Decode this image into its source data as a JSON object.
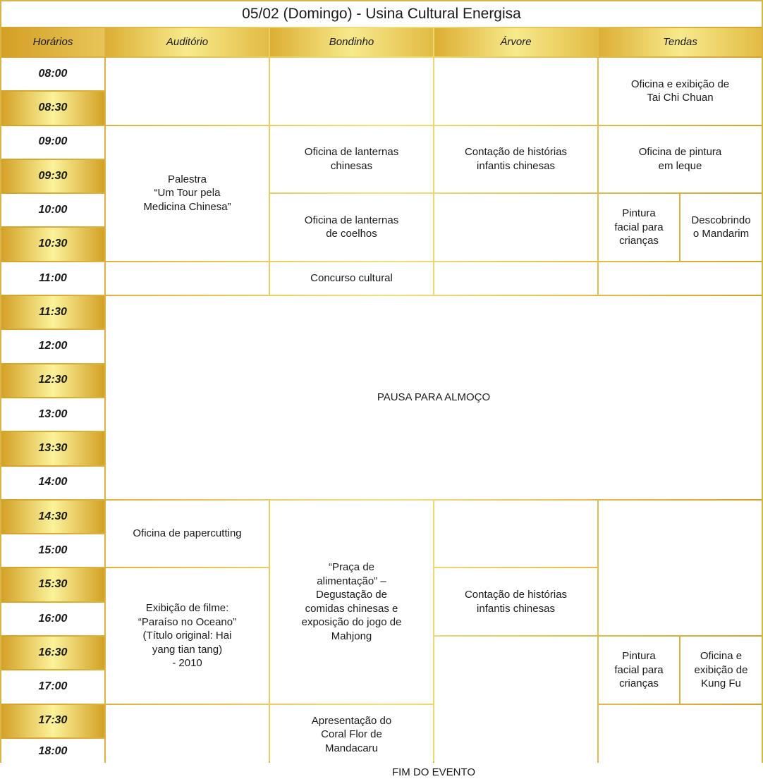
{
  "title": "05/02 (Domingo) - Usina Cultural Energisa",
  "headers": [
    "Horários",
    "Auditório",
    "Bondinho",
    "Árvore",
    "Tendas"
  ],
  "times": [
    "08:00",
    "08:30",
    "09:00",
    "09:30",
    "10:00",
    "10:30",
    "11:00",
    "11:30",
    "12:00",
    "12:30",
    "13:00",
    "13:30",
    "14:00",
    "14:30",
    "15:00",
    "15:30",
    "16:00",
    "16:30",
    "17:00",
    "17:30",
    "18:00"
  ],
  "colors": {
    "gold_dark": "#d4a32a",
    "gold_light": "#fbf29a"
  },
  "events": {
    "palestra": "Palestra\n“Um Tour pela\nMedicina Chinesa”",
    "lanternas_chinesas": "Oficina de lanternas\nchinesas",
    "lanternas_coelhos": "Oficina de lanternas\nde coelhos",
    "concurso": "Concurso cultural",
    "contacao_manha": "Contação de histórias\ninfantis chinesas",
    "tai_chi": "Oficina e exibição de\nTai Chi Chuan",
    "leque": "Oficina de pintura\nem leque",
    "pintura_facial_manha": "Pintura\nfacial para\ncrianças",
    "mandarim": "Descobrindo\no Mandarim",
    "pausa": "PAUSA PARA ALMOÇO",
    "papercutting": "Oficina de papercutting",
    "filme": "Exibição de filme:\n“Paraíso no Oceano”\n(Título original: Hai\nyang tian tang)\n- 2010",
    "praca": "“Praça de\nalimentação” –\nDegustação de\ncomidas chinesas e\nexposição do jogo de\nMahjong",
    "coral": "Apresentação do\nCoral Flor de\nMandacaru",
    "contacao_tarde": "Contação de histórias\ninfantis chinesas",
    "pintura_facial_tarde": "Pintura\nfacial para\ncrianças",
    "kung_fu": "Oficina e\nexibição de\nKung Fu",
    "fim": "FIM DO EVENTO"
  }
}
